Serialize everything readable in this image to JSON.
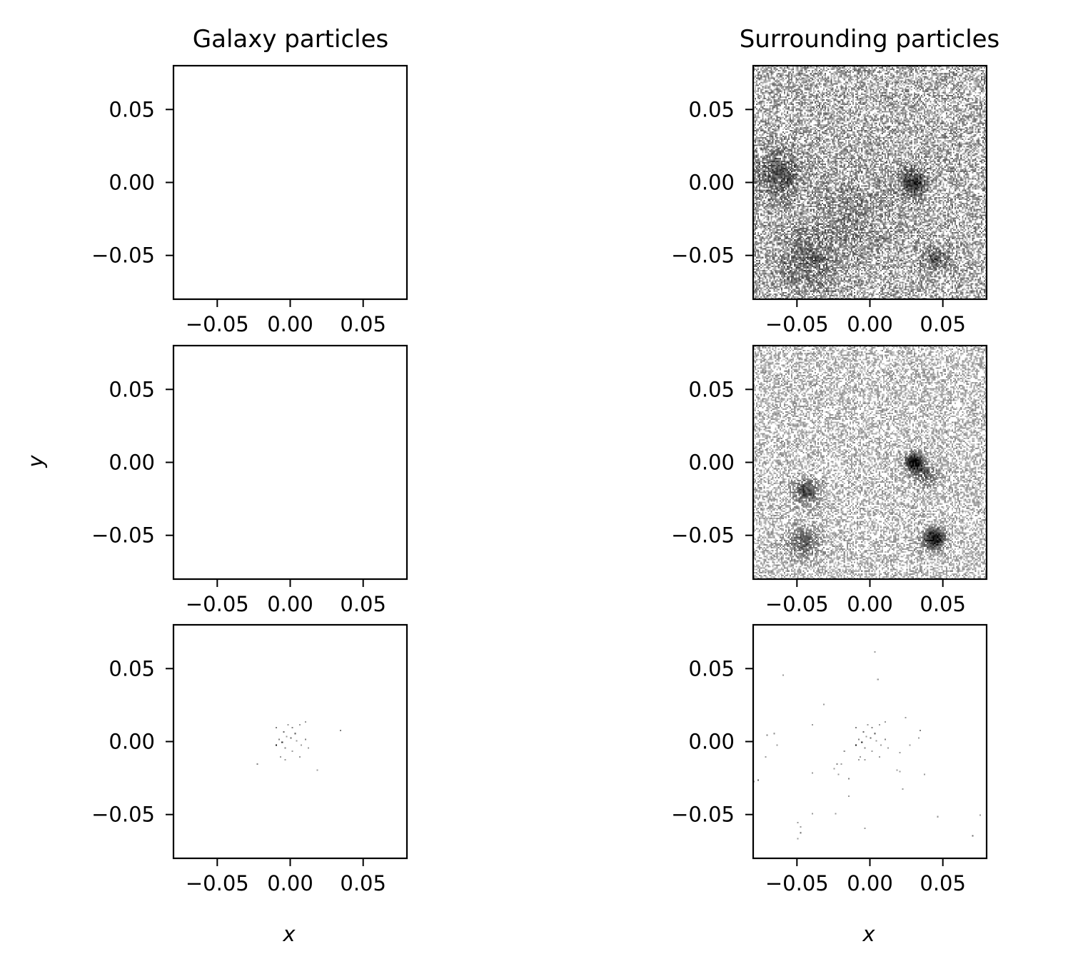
{
  "colors": {
    "axes": "#000000",
    "background": "#ffffff",
    "colormap": "Greys"
  },
  "chart_data": {
    "type": "heatmap",
    "layout": "3 rows x 2 columns",
    "column_titles": [
      "Galaxy particles",
      "Surrounding particles"
    ],
    "xlabel": "x",
    "ylabel": "y",
    "xlim": [
      -0.08,
      0.08
    ],
    "ylim": [
      -0.08,
      0.08
    ],
    "xticks": [
      -0.05,
      0.0,
      0.05
    ],
    "yticks": [
      -0.05,
      0.0,
      0.05
    ],
    "xtick_labels": [
      "−0.05",
      "0.00",
      "0.05"
    ],
    "ytick_labels": [
      "−0.05",
      "0.00",
      "0.05"
    ],
    "bins": 160,
    "panels": [
      {
        "row": 0,
        "col": 0,
        "content": "empty",
        "density": 0,
        "peaks": []
      },
      {
        "row": 0,
        "col": 1,
        "content": "noise",
        "density": 0.62,
        "base_intensity": 0.45,
        "peaks": [
          [
            -0.063,
            0.006,
            0.012,
            0.35
          ],
          [
            0.03,
            0.0,
            0.006,
            0.5
          ],
          [
            0.045,
            -0.052,
            0.006,
            0.35
          ],
          [
            -0.042,
            -0.055,
            0.015,
            0.25
          ],
          [
            -0.01,
            -0.02,
            0.02,
            0.15
          ]
        ]
      },
      {
        "row": 1,
        "col": 0,
        "content": "empty",
        "density": 0,
        "peaks": []
      },
      {
        "row": 1,
        "col": 1,
        "content": "noise",
        "density": 0.52,
        "base_intensity": 0.3,
        "peaks": [
          [
            0.03,
            0.0,
            0.004,
            0.95
          ],
          [
            0.044,
            -0.052,
            0.005,
            0.9
          ],
          [
            -0.044,
            -0.02,
            0.006,
            0.5
          ],
          [
            -0.045,
            -0.055,
            0.008,
            0.4
          ],
          [
            0.038,
            -0.008,
            0.006,
            0.4
          ]
        ]
      },
      {
        "row": 2,
        "col": 0,
        "content": "sparse",
        "points": [
          [
            -0.01,
            0.01,
            0.5
          ],
          [
            -0.005,
            0.007,
            0.6
          ],
          [
            -0.003,
            0.004,
            0.4
          ],
          [
            -0.008,
            0.002,
            0.5
          ],
          [
            -0.006,
            0.0,
            0.8
          ],
          [
            -0.01,
            -0.002,
            0.9
          ],
          [
            -0.004,
            -0.004,
            0.5
          ],
          [
            0.001,
            0.01,
            0.5
          ],
          [
            0.003,
            0.006,
            0.6
          ],
          [
            0.006,
            0.012,
            0.4
          ],
          [
            0.01,
            0.014,
            0.4
          ],
          [
            0.004,
            0.001,
            0.4
          ],
          [
            0.01,
            0.002,
            0.5
          ],
          [
            0.012,
            -0.004,
            0.4
          ],
          [
            0.001,
            -0.006,
            0.4
          ],
          [
            -0.007,
            -0.01,
            0.4
          ],
          [
            -0.004,
            -0.013,
            0.4
          ],
          [
            0.006,
            -0.01,
            0.4
          ],
          [
            0.018,
            -0.019,
            0.4
          ],
          [
            -0.023,
            -0.015,
            0.5
          ],
          [
            0.034,
            0.008,
            0.5
          ],
          [
            0.0,
            0.003,
            0.6
          ],
          [
            0.007,
            -0.002,
            0.4
          ],
          [
            -0.002,
            0.012,
            0.4
          ]
        ]
      },
      {
        "row": 2,
        "col": 1,
        "content": "sparse",
        "points": [
          [
            -0.01,
            0.01,
            0.5
          ],
          [
            -0.005,
            0.007,
            0.6
          ],
          [
            -0.003,
            0.004,
            0.4
          ],
          [
            -0.008,
            0.002,
            0.5
          ],
          [
            -0.006,
            0.0,
            0.8
          ],
          [
            -0.01,
            -0.002,
            0.9
          ],
          [
            -0.004,
            -0.004,
            0.5
          ],
          [
            0.001,
            0.01,
            0.5
          ],
          [
            0.003,
            0.006,
            0.6
          ],
          [
            0.006,
            0.012,
            0.4
          ],
          [
            0.01,
            0.014,
            0.4
          ],
          [
            0.004,
            0.001,
            0.4
          ],
          [
            0.01,
            0.002,
            0.5
          ],
          [
            0.012,
            -0.004,
            0.4
          ],
          [
            0.001,
            -0.006,
            0.4
          ],
          [
            -0.007,
            -0.01,
            0.4
          ],
          [
            -0.004,
            -0.013,
            0.4
          ],
          [
            0.006,
            -0.01,
            0.4
          ],
          [
            0.018,
            -0.019,
            0.4
          ],
          [
            -0.023,
            -0.015,
            0.5
          ],
          [
            0.034,
            0.008,
            0.5
          ],
          [
            0.0,
            0.003,
            0.6
          ],
          [
            0.007,
            -0.002,
            0.4
          ],
          [
            -0.002,
            0.012,
            0.4
          ],
          [
            0.003,
            0.062,
            0.4
          ],
          [
            0.005,
            0.043,
            0.4
          ],
          [
            -0.06,
            0.046,
            0.4
          ],
          [
            -0.032,
            0.026,
            0.4
          ],
          [
            -0.082,
            0.014,
            0.4
          ],
          [
            -0.07,
            0.005,
            0.5
          ],
          [
            -0.066,
            0.006,
            0.4
          ],
          [
            -0.064,
            -0.002,
            0.4
          ],
          [
            -0.072,
            -0.01,
            0.4
          ],
          [
            -0.077,
            -0.026,
            0.6
          ],
          [
            -0.08,
            -0.027,
            0.4
          ],
          [
            -0.04,
            0.012,
            0.4
          ],
          [
            -0.025,
            -0.018,
            0.4
          ],
          [
            -0.022,
            -0.022,
            0.4
          ],
          [
            -0.02,
            -0.015,
            0.4
          ],
          [
            -0.015,
            -0.025,
            0.5
          ],
          [
            -0.008,
            -0.012,
            0.4
          ],
          [
            -0.015,
            -0.037,
            0.4
          ],
          [
            -0.05,
            -0.055,
            0.4
          ],
          [
            -0.048,
            -0.062,
            0.5
          ],
          [
            -0.05,
            -0.066,
            0.4
          ],
          [
            -0.048,
            -0.058,
            0.4
          ],
          [
            -0.04,
            -0.049,
            0.4
          ],
          [
            -0.004,
            -0.059,
            0.4
          ],
          [
            -0.024,
            -0.049,
            0.4
          ],
          [
            0.024,
            0.017,
            0.4
          ],
          [
            0.033,
            0.003,
            0.4
          ],
          [
            0.028,
            -0.002,
            0.4
          ],
          [
            0.02,
            -0.007,
            0.4
          ],
          [
            0.02,
            -0.02,
            0.4
          ],
          [
            0.038,
            -0.022,
            0.4
          ],
          [
            0.022,
            -0.032,
            0.4
          ],
          [
            0.046,
            -0.051,
            0.4
          ],
          [
            0.075,
            -0.05,
            0.4
          ],
          [
            0.07,
            -0.064,
            0.6
          ],
          [
            -0.04,
            -0.021,
            0.4
          ],
          [
            -0.018,
            -0.006,
            0.4
          ]
        ]
      }
    ]
  }
}
